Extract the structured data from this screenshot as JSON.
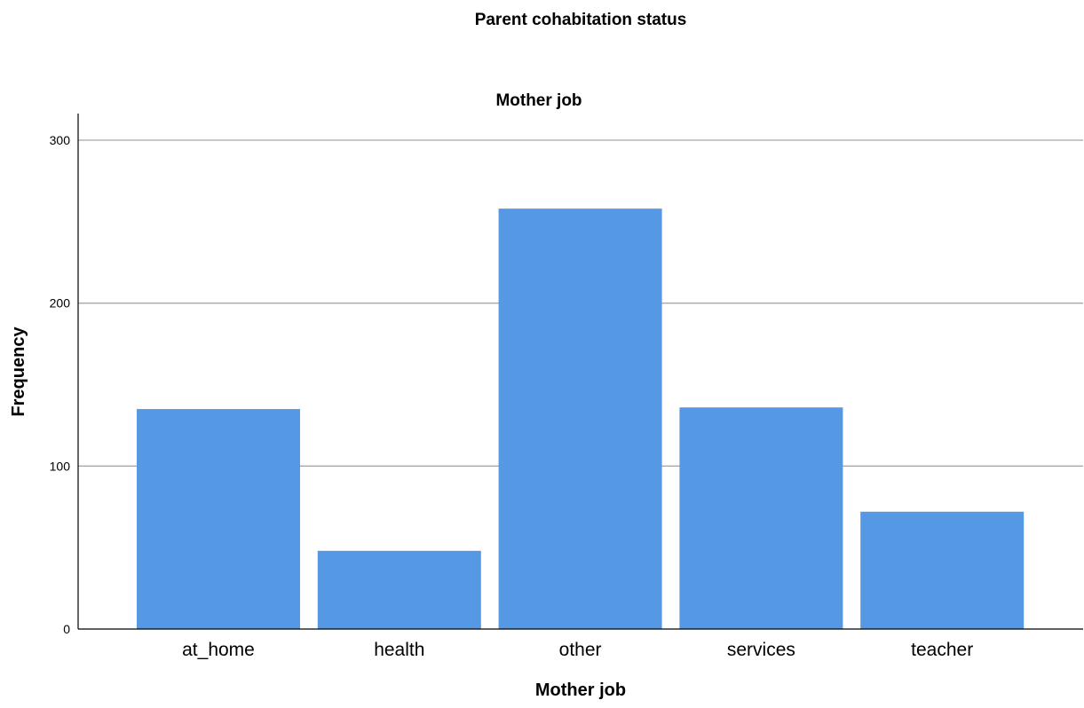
{
  "chart_data": {
    "type": "bar",
    "title": "Parent cohabitation status",
    "subtitle": "Mother job",
    "xlabel": "Mother job",
    "ylabel": "Frequency",
    "categories": [
      "at_home",
      "health",
      "other",
      "services",
      "teacher"
    ],
    "values": [
      135,
      48,
      258,
      136,
      72
    ],
    "ylim": [
      0,
      300
    ],
    "yticks": [
      0,
      100,
      200,
      300
    ],
    "grid": true,
    "bar_color": "#5598e4"
  }
}
